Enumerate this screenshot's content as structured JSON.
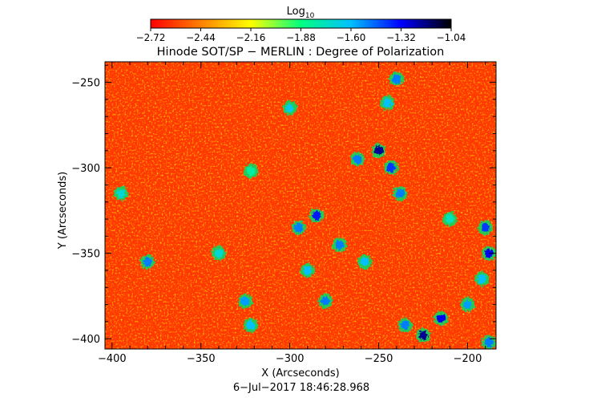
{
  "colorbar": {
    "title_main": "Log",
    "title_sub": "10",
    "ticks": [
      "−2.72",
      "−2.44",
      "−2.16",
      "−1.88",
      "−1.60",
      "−1.32",
      "−1.04"
    ],
    "colors": [
      "#ff0000",
      "#ff8000",
      "#ffff00",
      "#00ff80",
      "#00c0ff",
      "#0000ff",
      "#000000"
    ]
  },
  "chart_data": {
    "type": "heatmap",
    "title": "Hinode SOT/SP − MERLIN : Degree of Polarization",
    "xlabel": "X (Arcseconds)",
    "ylabel": "Y (Arcseconds)",
    "xlim": [
      -404,
      -184
    ],
    "ylim": [
      -406,
      -238
    ],
    "x_ticks": [
      {
        "value": -400,
        "label": "−400"
      },
      {
        "value": -350,
        "label": "−350"
      },
      {
        "value": -300,
        "label": "−300"
      },
      {
        "value": -250,
        "label": "−250"
      },
      {
        "value": -200,
        "label": "−200"
      }
    ],
    "y_ticks": [
      {
        "value": -250,
        "label": "−250"
      },
      {
        "value": -300,
        "label": "−300"
      },
      {
        "value": -350,
        "label": "−350"
      },
      {
        "value": -400,
        "label": "−400"
      }
    ],
    "color_scale": {
      "min": -2.72,
      "max": -1.04,
      "label": "Log10"
    },
    "background_level": -2.6,
    "features": [
      {
        "x": -250,
        "y": -290,
        "level": -1.2
      },
      {
        "x": -243,
        "y": -300,
        "level": -1.4
      },
      {
        "x": -238,
        "y": -315,
        "level": -1.5
      },
      {
        "x": -262,
        "y": -295,
        "level": -1.5
      },
      {
        "x": -285,
        "y": -328,
        "level": -1.35
      },
      {
        "x": -295,
        "y": -335,
        "level": -1.5
      },
      {
        "x": -272,
        "y": -345,
        "level": -1.5
      },
      {
        "x": -258,
        "y": -355,
        "level": -1.6
      },
      {
        "x": -290,
        "y": -360,
        "level": -1.6
      },
      {
        "x": -280,
        "y": -378,
        "level": -1.5
      },
      {
        "x": -325,
        "y": -378,
        "level": -1.55
      },
      {
        "x": -322,
        "y": -392,
        "level": -1.6
      },
      {
        "x": -380,
        "y": -355,
        "level": -1.5
      },
      {
        "x": -225,
        "y": -398,
        "level": -1.2
      },
      {
        "x": -215,
        "y": -388,
        "level": -1.3
      },
      {
        "x": -235,
        "y": -392,
        "level": -1.5
      },
      {
        "x": -190,
        "y": -335,
        "level": -1.4
      },
      {
        "x": -188,
        "y": -350,
        "level": -1.3
      },
      {
        "x": -192,
        "y": -365,
        "level": -1.6
      },
      {
        "x": -200,
        "y": -380,
        "level": -1.55
      },
      {
        "x": -188,
        "y": -402,
        "level": -1.5
      },
      {
        "x": -245,
        "y": -262,
        "level": -1.6
      },
      {
        "x": -240,
        "y": -248,
        "level": -1.5
      },
      {
        "x": -300,
        "y": -265,
        "level": -1.65
      },
      {
        "x": -340,
        "y": -350,
        "level": -1.7
      },
      {
        "x": -395,
        "y": -315,
        "level": -1.7
      },
      {
        "x": -322,
        "y": -302,
        "level": -1.8
      },
      {
        "x": -210,
        "y": -330,
        "level": -1.75
      }
    ]
  },
  "footer": {
    "timestamp": "6−Jul−2017 18:46:28.968"
  }
}
